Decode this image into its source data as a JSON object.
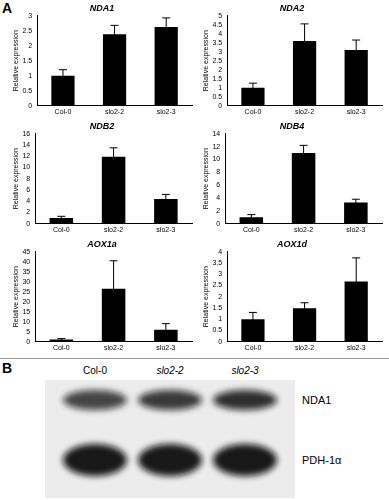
{
  "chart_data": [
    {
      "type": "bar",
      "title": "NDA1",
      "y_label": "Relative expression",
      "categories": [
        "Col-0",
        "slo2-2",
        "slo2-3"
      ],
      "values": [
        1.0,
        2.38,
        2.63
      ],
      "errors": [
        0.2,
        0.3,
        0.3
      ],
      "color": "#000000",
      "ylim": [
        0,
        3
      ],
      "yticks": [
        0,
        0.5,
        1,
        1.5,
        2,
        2.5,
        3
      ],
      "grid": false
    },
    {
      "type": "bar",
      "title": "NDA2",
      "y_label": "Relative expression",
      "categories": [
        "Col-0",
        "slo2-2",
        "slo2-3"
      ],
      "values": [
        1.0,
        3.6,
        3.1
      ],
      "errors": [
        0.25,
        0.95,
        0.55
      ],
      "color": "#000000",
      "ylim": [
        0,
        5
      ],
      "yticks": [
        0,
        0.5,
        1,
        1.5,
        2,
        2.5,
        3,
        3.5,
        4,
        4.5,
        5
      ],
      "grid": false
    },
    {
      "type": "bar",
      "title": "NDB2",
      "y_label": "Relative expression",
      "categories": [
        "Col-0",
        "slo2-2",
        "slo2-3"
      ],
      "values": [
        1.0,
        11.9,
        4.4
      ],
      "errors": [
        0.3,
        1.6,
        0.8
      ],
      "color": "#000000",
      "ylim": [
        0,
        16
      ],
      "yticks": [
        0,
        2,
        4,
        6,
        8,
        10,
        12,
        14,
        16
      ],
      "grid": false
    },
    {
      "type": "bar",
      "title": "NDB4",
      "y_label": "Relative expression",
      "categories": [
        "Col-0",
        "slo2-2",
        "slo2-3"
      ],
      "values": [
        1.0,
        11.0,
        3.3
      ],
      "errors": [
        0.4,
        1.2,
        0.5
      ],
      "color": "#000000",
      "ylim": [
        0,
        14
      ],
      "yticks": [
        0,
        2,
        4,
        6,
        8,
        10,
        12,
        14
      ],
      "grid": false
    },
    {
      "type": "bar",
      "title": "AOX1a",
      "y_label": "Relative expression",
      "categories": [
        "Col-0",
        "slo2-2",
        "slo2-3"
      ],
      "values": [
        1.0,
        26.5,
        6.0
      ],
      "errors": [
        0.5,
        14.0,
        3.0
      ],
      "color": "#000000",
      "ylim": [
        0,
        45
      ],
      "yticks": [
        0,
        5,
        10,
        15,
        20,
        25,
        30,
        35,
        40,
        45
      ],
      "grid": false
    },
    {
      "type": "bar",
      "title": "AOX1d",
      "y_label": "Relative expression",
      "categories": [
        "Col-0",
        "slo2-2",
        "slo2-3"
      ],
      "values": [
        1.0,
        1.48,
        2.68
      ],
      "errors": [
        0.3,
        0.25,
        1.05
      ],
      "color": "#000000",
      "ylim": [
        0,
        4
      ],
      "yticks": [
        0,
        0.5,
        1,
        1.5,
        2,
        2.5,
        3,
        3.5,
        4
      ],
      "grid": false
    }
  ],
  "panel_labels": [
    "A",
    "B"
  ],
  "blot": {
    "lanes": [
      "Col-0",
      "slo2-2",
      "slo2-3"
    ],
    "rows": [
      "NDA1",
      "PDH-1α"
    ]
  }
}
